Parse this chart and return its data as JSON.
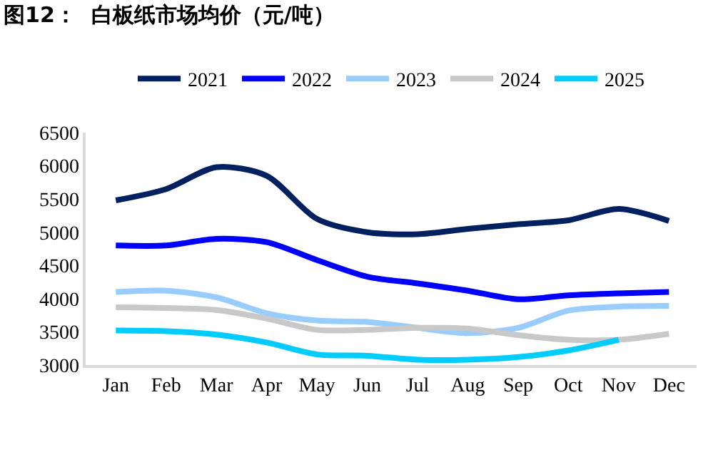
{
  "chart_data": {
    "type": "line",
    "title": "图12：  白板纸市场均价（元/吨）",
    "categories": [
      "Jan",
      "Feb",
      "Mar",
      "Apr",
      "May",
      "Jun",
      "Jul",
      "Aug",
      "Sep",
      "Oct",
      "Nov",
      "Dec"
    ],
    "series": [
      {
        "name": "2021",
        "color": "#002060",
        "values": [
          5480,
          5650,
          5980,
          5850,
          5200,
          5000,
          4970,
          5050,
          5120,
          5180,
          5350,
          5170
        ]
      },
      {
        "name": "2022",
        "color": "#0000ff",
        "values": [
          4800,
          4800,
          4900,
          4850,
          4580,
          4330,
          4230,
          4120,
          3990,
          4050,
          4080,
          4100
        ]
      },
      {
        "name": "2023",
        "color": "#99ccff",
        "values": [
          4100,
          4120,
          4020,
          3780,
          3670,
          3650,
          3560,
          3480,
          3560,
          3820,
          3880,
          3890
        ]
      },
      {
        "name": "2024",
        "color": "#c8c8c8",
        "values": [
          3870,
          3860,
          3830,
          3700,
          3530,
          3530,
          3560,
          3550,
          3450,
          3380,
          3380,
          3470
        ]
      },
      {
        "name": "2025",
        "color": "#00ccff",
        "values": [
          3520,
          3510,
          3460,
          3340,
          3160,
          3140,
          3080,
          3080,
          3120,
          3220,
          3380,
          null
        ]
      }
    ],
    "ylim": [
      3000,
      6500
    ],
    "yticks": [
      3000,
      3500,
      4000,
      4500,
      5000,
      5500,
      6000,
      6500
    ],
    "legend": "top",
    "marker": "none",
    "line_style": "solid"
  }
}
